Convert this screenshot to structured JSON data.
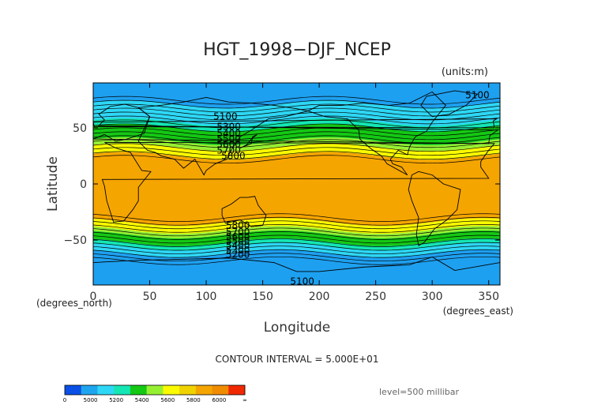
{
  "chart_data": {
    "type": "heatmap",
    "title": "HGT_1998−DJF_NCEP",
    "units_label": "(units:m)",
    "xlabel": "Longitude",
    "ylabel": "Latitude",
    "x_unit_label": "(degrees_east)",
    "y_unit_label": "(degrees_north)",
    "xlim": [
      0,
      360
    ],
    "ylim": [
      -90,
      90
    ],
    "x_ticks": [
      {
        "value": 0,
        "label": "0"
      },
      {
        "value": 50,
        "label": "50"
      },
      {
        "value": 100,
        "label": "100"
      },
      {
        "value": 150,
        "label": "150"
      },
      {
        "value": 200,
        "label": "200"
      },
      {
        "value": 250,
        "label": "250"
      },
      {
        "value": 300,
        "label": "300"
      },
      {
        "value": 350,
        "label": "350"
      }
    ],
    "y_ticks": [
      {
        "value": -50,
        "label": "−50"
      },
      {
        "value": 0,
        "label": "0"
      },
      {
        "value": 50,
        "label": "50"
      }
    ],
    "contour_interval_text": "CONTOUR INTERVAL = 5.000E+01",
    "level_text": "level=500 millibar",
    "contour_labels": [
      {
        "text": "5100",
        "lon": 340,
        "lat": 79
      },
      {
        "text": "5100",
        "lon": 117,
        "lat": 60
      },
      {
        "text": "5300",
        "lon": 120,
        "lat": 51
      },
      {
        "text": "5400",
        "lon": 120,
        "lat": 45
      },
      {
        "text": "5500",
        "lon": 120,
        "lat": 40
      },
      {
        "text": "5600",
        "lon": 120,
        "lat": 35
      },
      {
        "text": "5700",
        "lon": 120,
        "lat": 30
      },
      {
        "text": "5800",
        "lon": 124,
        "lat": 25
      },
      {
        "text": "5800",
        "lon": 128,
        "lat": -37
      },
      {
        "text": "5700",
        "lon": 128,
        "lat": -43
      },
      {
        "text": "5600",
        "lon": 128,
        "lat": -47
      },
      {
        "text": "5500",
        "lon": 128,
        "lat": -51
      },
      {
        "text": "5400",
        "lon": 128,
        "lat": -55
      },
      {
        "text": "5300",
        "lon": 128,
        "lat": -59
      },
      {
        "text": "5200",
        "lon": 128,
        "lat": -63
      },
      {
        "text": "5100",
        "lon": 185,
        "lat": -87
      }
    ],
    "colorbar": {
      "tick_labels": [
        "0",
        "5000",
        "5200",
        "5400",
        "5600",
        "5800",
        "6000",
        "∞"
      ],
      "colors": [
        "#0a50e6",
        "#1ea5f0",
        "#2ed7f5",
        "#14e6b4",
        "#14c814",
        "#96f032",
        "#fafa00",
        "#f0d200",
        "#f5a500",
        "#f08c00",
        "#f02800"
      ]
    },
    "bands": [
      {
        "color": "#1ea0f0",
        "lat_min": -90,
        "lat_max": 90
      },
      {
        "color": "#2ed7f5",
        "lat_min": 55,
        "lat_max": 71
      },
      {
        "color": "#14e6b4",
        "lat_min": 47,
        "lat_max": 55
      },
      {
        "color": "#14c814",
        "lat_min": 38,
        "lat_max": 50
      },
      {
        "color": "#96f032",
        "lat_min": 33,
        "lat_max": 38
      },
      {
        "color": "#fafa00",
        "lat_min": 25,
        "lat_max": 33
      },
      {
        "color": "#f5a500",
        "lat_min": -34,
        "lat_max": 25
      },
      {
        "color": "#fafa00",
        "lat_min": -41,
        "lat_max": -34
      },
      {
        "color": "#96f032",
        "lat_min": -45,
        "lat_max": -41
      },
      {
        "color": "#14c814",
        "lat_min": -52,
        "lat_max": -45
      },
      {
        "color": "#14e6b4",
        "lat_min": -56,
        "lat_max": -52
      },
      {
        "color": "#2ed7f5",
        "lat_min": -62,
        "lat_max": -56
      }
    ]
  }
}
